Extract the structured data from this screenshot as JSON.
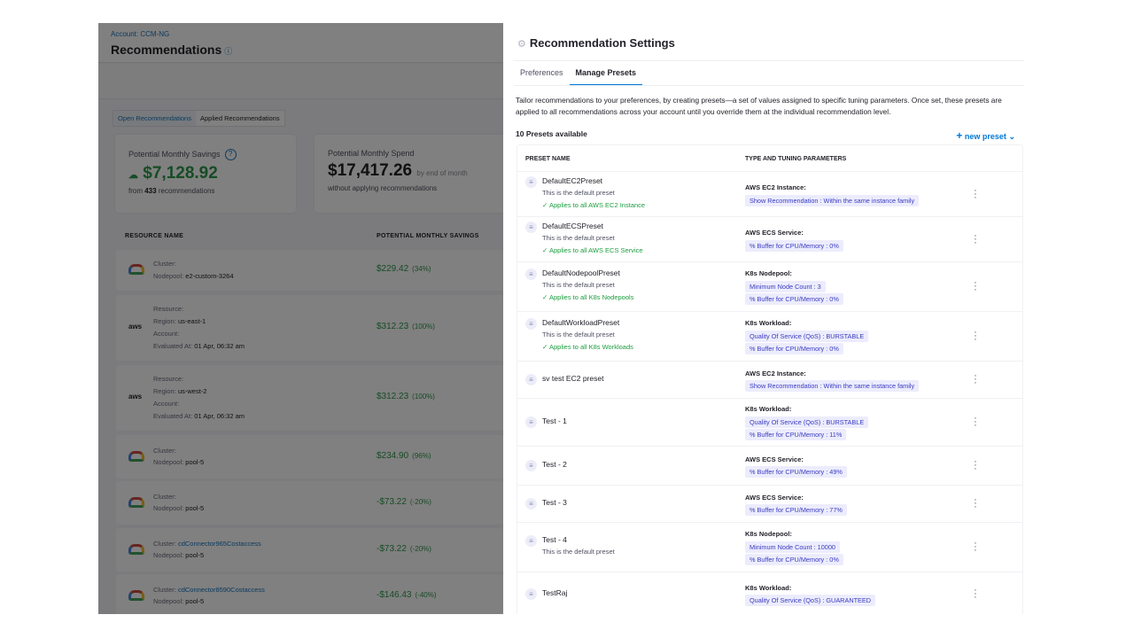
{
  "background_page": {
    "account": "Account: CCM-NG",
    "title": "Recommendations",
    "tabs": [
      "Open Recommendations",
      "Applied Recommendations"
    ],
    "savings_card": {
      "label": "Potential Monthly Savings",
      "value": "$7,128.92",
      "sub_prefix": "from",
      "count": "433",
      "sub_suffix": "recommendations"
    },
    "spend_card": {
      "label": "Potential Monthly Spend",
      "value": "$17,417.26",
      "suffix": "by end of month",
      "sub": "without applying recommendations"
    },
    "columns": [
      "RESOURCE NAME",
      "POTENTIAL MONTHLY SAVINGS"
    ],
    "rows": [
      {
        "provider": "gcp",
        "lines": [
          [
            "Cluster:",
            ""
          ],
          [
            "Nodepool:",
            "e2-custom-3264"
          ]
        ],
        "savings": "$229.42",
        "pct": "(34%)"
      },
      {
        "provider": "aws",
        "lines": [
          [
            "Resource:",
            ""
          ],
          [
            "Region:",
            "us-east-1"
          ],
          [
            "Account:",
            ""
          ],
          [
            "Evaluated At:",
            "01 Apr, 06:32 am"
          ]
        ],
        "savings": "$312.23",
        "pct": "(100%)"
      },
      {
        "provider": "aws",
        "lines": [
          [
            "Resource:",
            ""
          ],
          [
            "Region:",
            "us-west-2"
          ],
          [
            "Account:",
            ""
          ],
          [
            "Evaluated At:",
            "01 Apr, 06:32 am"
          ]
        ],
        "savings": "$312.23",
        "pct": "(100%)"
      },
      {
        "provider": "gcp",
        "lines": [
          [
            "Cluster:",
            ""
          ],
          [
            "Nodepool:",
            "pool-5"
          ]
        ],
        "savings": "$234.90",
        "pct": "(96%)"
      },
      {
        "provider": "gcp",
        "lines": [
          [
            "Cluster:",
            ""
          ],
          [
            "Nodepool:",
            "pool-5"
          ]
        ],
        "savings": "-$73.22",
        "pct": "(-20%)"
      },
      {
        "provider": "gcp",
        "lines": [
          [
            "Cluster:",
            "cdConnector965Costaccess"
          ],
          [
            "Nodepool:",
            "pool-5"
          ]
        ],
        "savings": "-$73.22",
        "pct": "(-20%)"
      },
      {
        "provider": "gcp",
        "lines": [
          [
            "Cluster:",
            "cdConnector8590Costaccess"
          ],
          [
            "Nodepool:",
            "pool-5"
          ]
        ],
        "savings": "-$146.43",
        "pct": "(-40%)"
      }
    ]
  },
  "drawer": {
    "title": "Recommendation Settings",
    "tabs": [
      "Preferences",
      "Manage Presets"
    ],
    "active_tab": "Manage Presets",
    "description": "Tailor recommendations to your preferences, by creating presets—a set of values assigned to specific tuning parameters. Once set, these presets are applied to all recommendations across your account until you override them at the individual recommendation level.",
    "count_label": "10 Presets available",
    "new_preset_label": "new preset",
    "columns": [
      "PRESET NAME",
      "TYPE AND TUNING PARAMETERS"
    ],
    "presets": [
      {
        "name": "DefaultEC2Preset",
        "desc": "This is the default preset",
        "applies": "Applies to all AWS EC2 Instance",
        "type": "AWS EC2 Instance:",
        "tags": [
          "Show Recommendation : Within the same instance family"
        ]
      },
      {
        "name": "DefaultECSPreset",
        "desc": "This is the default preset",
        "applies": "Applies to all AWS ECS Service",
        "type": "AWS ECS Service:",
        "tags": [
          "% Buffer for CPU/Memory : 0%"
        ]
      },
      {
        "name": "DefaultNodepoolPreset",
        "desc": "This is the default preset",
        "applies": "Applies to all K8s Nodepools",
        "type": "K8s Nodepool:",
        "tags": [
          "Minimum Node Count : 3",
          "% Buffer for CPU/Memory : 0%"
        ]
      },
      {
        "name": "DefaultWorkloadPreset",
        "desc": "This is the default preset",
        "applies": "Applies to all K8s Workloads",
        "type": "K8s Workload:",
        "tags": [
          "Quality Of Service (QoS) : BURSTABLE",
          "% Buffer for CPU/Memory : 0%"
        ]
      },
      {
        "name": "sv test EC2 preset",
        "type": "AWS EC2 Instance:",
        "tags": [
          "Show Recommendation : Within the same instance family"
        ]
      },
      {
        "name": "Test - 1",
        "type": "K8s Workload:",
        "tags": [
          "Quality Of Service (QoS) : BURSTABLE",
          "% Buffer for CPU/Memory : 11%"
        ]
      },
      {
        "name": "Test - 2",
        "type": "AWS ECS Service:",
        "tags": [
          "% Buffer for CPU/Memory : 49%"
        ]
      },
      {
        "name": "Test - 3",
        "type": "AWS ECS Service:",
        "tags": [
          "% Buffer for CPU/Memory : 77%"
        ]
      },
      {
        "name": "Test - 4",
        "desc": "This is the default preset",
        "type": "K8s Nodepool:",
        "tags": [
          "Minimum Node Count : 10000",
          "% Buffer for CPU/Memory : 0%"
        ]
      },
      {
        "name": "TestRaj",
        "type": "K8s Workload:",
        "tags": [
          "Quality Of Service (QoS) : GUARANTEED"
        ]
      }
    ]
  },
  "colors": {
    "accent": "#0278d5",
    "success": "#1b9e3e",
    "tag_bg": "#ececfd",
    "tag_text": "#3a3cc0"
  }
}
